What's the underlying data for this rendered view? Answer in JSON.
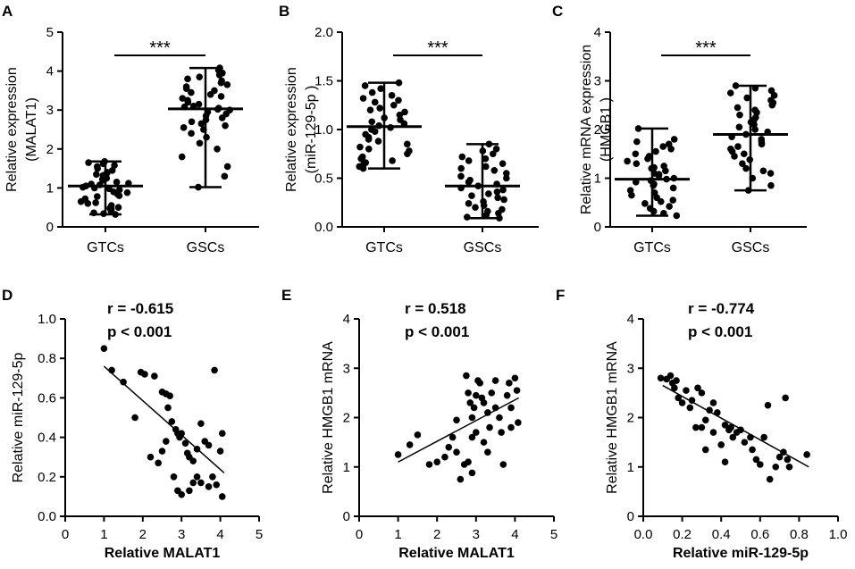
{
  "chart_data": [
    {
      "panel": "A",
      "type": "scatter",
      "subtype": "dot-plot",
      "categories": [
        "GTCs",
        "GSCs"
      ],
      "ylabel": [
        "Relative expression",
        "(MALAT1)"
      ],
      "xlabel": "",
      "ylim": [
        0,
        5
      ],
      "yticks": [
        "0",
        "1",
        "2",
        "3",
        "4",
        "5"
      ],
      "significance": "***",
      "series": [
        {
          "name": "GTCs",
          "mean": 1.05,
          "min": 0.32,
          "max": 1.68,
          "points": [
            0.32,
            0.34,
            0.36,
            0.4,
            0.45,
            0.48,
            0.5,
            0.55,
            0.6,
            0.62,
            0.65,
            0.7,
            0.72,
            0.78,
            0.8,
            0.85,
            0.88,
            0.9,
            0.95,
            0.98,
            1.0,
            1.02,
            1.05,
            1.08,
            1.1,
            1.12,
            1.15,
            1.2,
            1.22,
            1.25,
            1.3,
            1.32,
            1.35,
            1.38,
            1.4,
            1.45,
            1.5,
            1.55,
            1.58,
            1.62,
            1.65,
            1.68
          ]
        },
        {
          "name": "GSCs",
          "mean": 3.03,
          "min": 1.02,
          "max": 4.08,
          "points": [
            1.02,
            1.3,
            1.55,
            1.8,
            2.0,
            2.15,
            2.3,
            2.4,
            2.5,
            2.55,
            2.6,
            2.65,
            2.7,
            2.75,
            2.8,
            2.85,
            2.9,
            2.95,
            3.0,
            3.02,
            3.05,
            3.08,
            3.1,
            3.15,
            3.2,
            3.25,
            3.3,
            3.35,
            3.4,
            3.45,
            3.5,
            3.55,
            3.6,
            3.65,
            3.7,
            3.75,
            3.8,
            3.85,
            3.9,
            3.95,
            4.02,
            4.08
          ]
        }
      ]
    },
    {
      "panel": "B",
      "type": "scatter",
      "subtype": "dot-plot",
      "categories": [
        "GTCs",
        "GSCs"
      ],
      "ylabel": [
        "Relative expression",
        "(miR-129-5p )"
      ],
      "xlabel": "",
      "ylim": [
        0,
        2
      ],
      "yticks": [
        "0.0",
        "0.5",
        "1.0",
        "1.5",
        "2.0"
      ],
      "significance": "***",
      "series": [
        {
          "name": "GTCs",
          "mean": 1.03,
          "min": 0.6,
          "max": 1.48,
          "points": [
            0.6,
            0.62,
            0.64,
            0.66,
            0.68,
            0.7,
            0.72,
            0.75,
            0.78,
            0.8,
            0.82,
            0.85,
            0.88,
            0.9,
            0.92,
            0.95,
            0.98,
            1.0,
            1.02,
            1.04,
            1.06,
            1.08,
            1.1,
            1.12,
            1.15,
            1.18,
            1.2,
            1.22,
            1.25,
            1.28,
            1.3,
            1.32,
            1.35,
            1.38,
            1.42,
            1.45,
            1.48
          ]
        },
        {
          "name": "GSCs",
          "mean": 0.42,
          "min": 0.09,
          "max": 0.85,
          "points": [
            0.09,
            0.1,
            0.12,
            0.14,
            0.16,
            0.18,
            0.2,
            0.22,
            0.24,
            0.26,
            0.28,
            0.3,
            0.32,
            0.34,
            0.36,
            0.38,
            0.4,
            0.42,
            0.44,
            0.46,
            0.48,
            0.5,
            0.52,
            0.55,
            0.58,
            0.6,
            0.62,
            0.65,
            0.68,
            0.7,
            0.72,
            0.75,
            0.78,
            0.8,
            0.85
          ]
        }
      ]
    },
    {
      "panel": "C",
      "type": "scatter",
      "subtype": "dot-plot",
      "categories": [
        "GTCs",
        "GSCs"
      ],
      "ylabel": [
        "Relative mRNA expression",
        "(HMGB1 )"
      ],
      "xlabel": "",
      "ylim": [
        0,
        4
      ],
      "yticks": [
        "0",
        "1",
        "2",
        "3",
        "4"
      ],
      "significance": "***",
      "series": [
        {
          "name": "GTCs",
          "mean": 0.98,
          "min": 0.23,
          "max": 2.02,
          "points": [
            0.23,
            0.28,
            0.32,
            0.38,
            0.42,
            0.48,
            0.52,
            0.55,
            0.6,
            0.65,
            0.7,
            0.75,
            0.8,
            0.85,
            0.88,
            0.92,
            0.95,
            0.98,
            1.0,
            1.05,
            1.08,
            1.1,
            1.15,
            1.2,
            1.22,
            1.25,
            1.3,
            1.35,
            1.4,
            1.45,
            1.5,
            1.55,
            1.6,
            1.65,
            1.7,
            1.75,
            1.8,
            2.02
          ]
        },
        {
          "name": "GSCs",
          "mean": 1.9,
          "min": 0.75,
          "max": 2.9,
          "points": [
            0.75,
            0.85,
            1.0,
            1.1,
            1.15,
            1.2,
            1.3,
            1.38,
            1.45,
            1.5,
            1.55,
            1.6,
            1.65,
            1.7,
            1.75,
            1.8,
            1.85,
            1.9,
            1.95,
            2.0,
            2.05,
            2.1,
            2.15,
            2.2,
            2.25,
            2.3,
            2.35,
            2.4,
            2.45,
            2.5,
            2.55,
            2.6,
            2.65,
            2.7,
            2.75,
            2.8,
            2.85,
            2.9
          ]
        }
      ]
    },
    {
      "panel": "D",
      "type": "scatter",
      "xlabel": "Relative MALAT1",
      "ylabel": "Relative miR-129-5p",
      "xlim": [
        0,
        5
      ],
      "ylim": [
        0,
        1.0
      ],
      "xticks": [
        "0",
        "1",
        "2",
        "3",
        "4",
        "5"
      ],
      "yticks": [
        "0.0",
        "0.2",
        "0.4",
        "0.6",
        "0.8",
        "1.0"
      ],
      "stats": [
        "r = -0.615",
        "p < 0.001"
      ],
      "fit_line": {
        "x": [
          1.0,
          4.1
        ],
        "y": [
          0.76,
          0.22
        ]
      },
      "points": [
        [
          1.0,
          0.85
        ],
        [
          1.2,
          0.74
        ],
        [
          1.5,
          0.68
        ],
        [
          1.8,
          0.5
        ],
        [
          1.95,
          0.73
        ],
        [
          2.05,
          0.72
        ],
        [
          2.3,
          0.71
        ],
        [
          2.5,
          0.63
        ],
        [
          2.6,
          0.62
        ],
        [
          2.7,
          0.61
        ],
        [
          2.65,
          0.55
        ],
        [
          2.75,
          0.48
        ],
        [
          2.85,
          0.44
        ],
        [
          2.9,
          0.42
        ],
        [
          3.0,
          0.42
        ],
        [
          2.95,
          0.4
        ],
        [
          3.1,
          0.37
        ],
        [
          3.15,
          0.32
        ],
        [
          3.2,
          0.3
        ],
        [
          3.3,
          0.28
        ],
        [
          3.4,
          0.34
        ],
        [
          3.5,
          0.47
        ],
        [
          3.6,
          0.38
        ],
        [
          3.7,
          0.36
        ],
        [
          3.8,
          0.2
        ],
        [
          3.85,
          0.74
        ],
        [
          4.0,
          0.33
        ],
        [
          4.05,
          0.42
        ],
        [
          2.2,
          0.3
        ],
        [
          2.4,
          0.27
        ],
        [
          2.5,
          0.33
        ],
        [
          2.6,
          0.38
        ],
        [
          2.8,
          0.2
        ],
        [
          2.9,
          0.13
        ],
        [
          3.0,
          0.11
        ],
        [
          3.2,
          0.13
        ],
        [
          3.3,
          0.17
        ],
        [
          3.4,
          0.2
        ],
        [
          3.5,
          0.17
        ],
        [
          3.7,
          0.15
        ],
        [
          3.9,
          0.16
        ],
        [
          4.05,
          0.1
        ]
      ]
    },
    {
      "panel": "E",
      "type": "scatter",
      "xlabel": "Relative MALAT1",
      "ylabel": "Relative HMGB1 mRNA",
      "xlim": [
        0,
        5
      ],
      "ylim": [
        0,
        4
      ],
      "xticks": [
        "0",
        "1",
        "2",
        "3",
        "4",
        "5"
      ],
      "yticks": [
        "0",
        "1",
        "2",
        "3",
        "4"
      ],
      "stats": [
        "r = 0.518",
        "p < 0.001"
      ],
      "fit_line": {
        "x": [
          1.0,
          4.1
        ],
        "y": [
          1.1,
          2.4
        ]
      },
      "points": [
        [
          1.0,
          1.25
        ],
        [
          1.3,
          1.45
        ],
        [
          1.5,
          1.65
        ],
        [
          1.8,
          1.05
        ],
        [
          2.0,
          1.1
        ],
        [
          2.2,
          1.2
        ],
        [
          2.3,
          1.4
        ],
        [
          2.4,
          1.6
        ],
        [
          2.5,
          1.95
        ],
        [
          2.5,
          1.3
        ],
        [
          2.6,
          0.75
        ],
        [
          2.7,
          1.05
        ],
        [
          2.8,
          1.1
        ],
        [
          2.9,
          0.88
        ],
        [
          2.75,
          2.85
        ],
        [
          2.8,
          2.5
        ],
        [
          2.85,
          2.3
        ],
        [
          2.9,
          2.0
        ],
        [
          2.95,
          2.2
        ],
        [
          3.0,
          2.45
        ],
        [
          3.05,
          2.75
        ],
        [
          3.1,
          2.7
        ],
        [
          3.15,
          2.4
        ],
        [
          3.2,
          2.3
        ],
        [
          3.3,
          2.1
        ],
        [
          3.35,
          1.8
        ],
        [
          3.4,
          2.5
        ],
        [
          3.5,
          2.75
        ],
        [
          3.6,
          2.0
        ],
        [
          3.65,
          1.7
        ],
        [
          3.7,
          1.05
        ],
        [
          3.8,
          2.45
        ],
        [
          3.85,
          2.7
        ],
        [
          3.9,
          1.8
        ],
        [
          4.0,
          2.8
        ],
        [
          4.05,
          2.55
        ],
        [
          4.08,
          1.9
        ],
        [
          3.2,
          1.5
        ],
        [
          3.3,
          1.3
        ],
        [
          2.9,
          1.6
        ],
        [
          3.0,
          1.7
        ],
        [
          3.5,
          2.2
        ],
        [
          3.9,
          2.2
        ]
      ]
    },
    {
      "panel": "F",
      "type": "scatter",
      "xlabel": "Relative miR-129-5p",
      "ylabel": "Relative HMGB1 mRNA",
      "xlim": [
        0,
        1.0
      ],
      "ylim": [
        0,
        4
      ],
      "xticks": [
        "0.0",
        "0.2",
        "0.4",
        "0.6",
        "0.8",
        "1.0"
      ],
      "yticks": [
        "0",
        "1",
        "2",
        "3",
        "4"
      ],
      "stats": [
        "r = -0.774",
        "p < 0.001"
      ],
      "fit_line": {
        "x": [
          0.1,
          0.85
        ],
        "y": [
          2.65,
          1.0
        ]
      },
      "points": [
        [
          0.09,
          2.8
        ],
        [
          0.12,
          2.78
        ],
        [
          0.14,
          2.85
        ],
        [
          0.15,
          2.7
        ],
        [
          0.16,
          2.6
        ],
        [
          0.17,
          2.75
        ],
        [
          0.18,
          2.4
        ],
        [
          0.2,
          2.3
        ],
        [
          0.22,
          2.55
        ],
        [
          0.24,
          2.2
        ],
        [
          0.25,
          2.35
        ],
        [
          0.27,
          1.8
        ],
        [
          0.28,
          2.6
        ],
        [
          0.3,
          2.5
        ],
        [
          0.3,
          1.8
        ],
        [
          0.32,
          1.95
        ],
        [
          0.34,
          2.15
        ],
        [
          0.36,
          2.3
        ],
        [
          0.36,
          1.7
        ],
        [
          0.38,
          2.1
        ],
        [
          0.4,
          1.45
        ],
        [
          0.42,
          1.85
        ],
        [
          0.44,
          1.75
        ],
        [
          0.45,
          1.8
        ],
        [
          0.46,
          1.6
        ],
        [
          0.48,
          1.7
        ],
        [
          0.5,
          1.75
        ],
        [
          0.52,
          1.5
        ],
        [
          0.55,
          1.6
        ],
        [
          0.56,
          1.35
        ],
        [
          0.58,
          1.15
        ],
        [
          0.6,
          1.05
        ],
        [
          0.62,
          1.6
        ],
        [
          0.64,
          2.25
        ],
        [
          0.65,
          0.75
        ],
        [
          0.68,
          1.0
        ],
        [
          0.7,
          1.2
        ],
        [
          0.72,
          1.3
        ],
        [
          0.73,
          2.4
        ],
        [
          0.74,
          1.15
        ],
        [
          0.75,
          1.0
        ],
        [
          0.84,
          1.25
        ],
        [
          0.32,
          1.35
        ],
        [
          0.42,
          1.1
        ]
      ]
    }
  ]
}
